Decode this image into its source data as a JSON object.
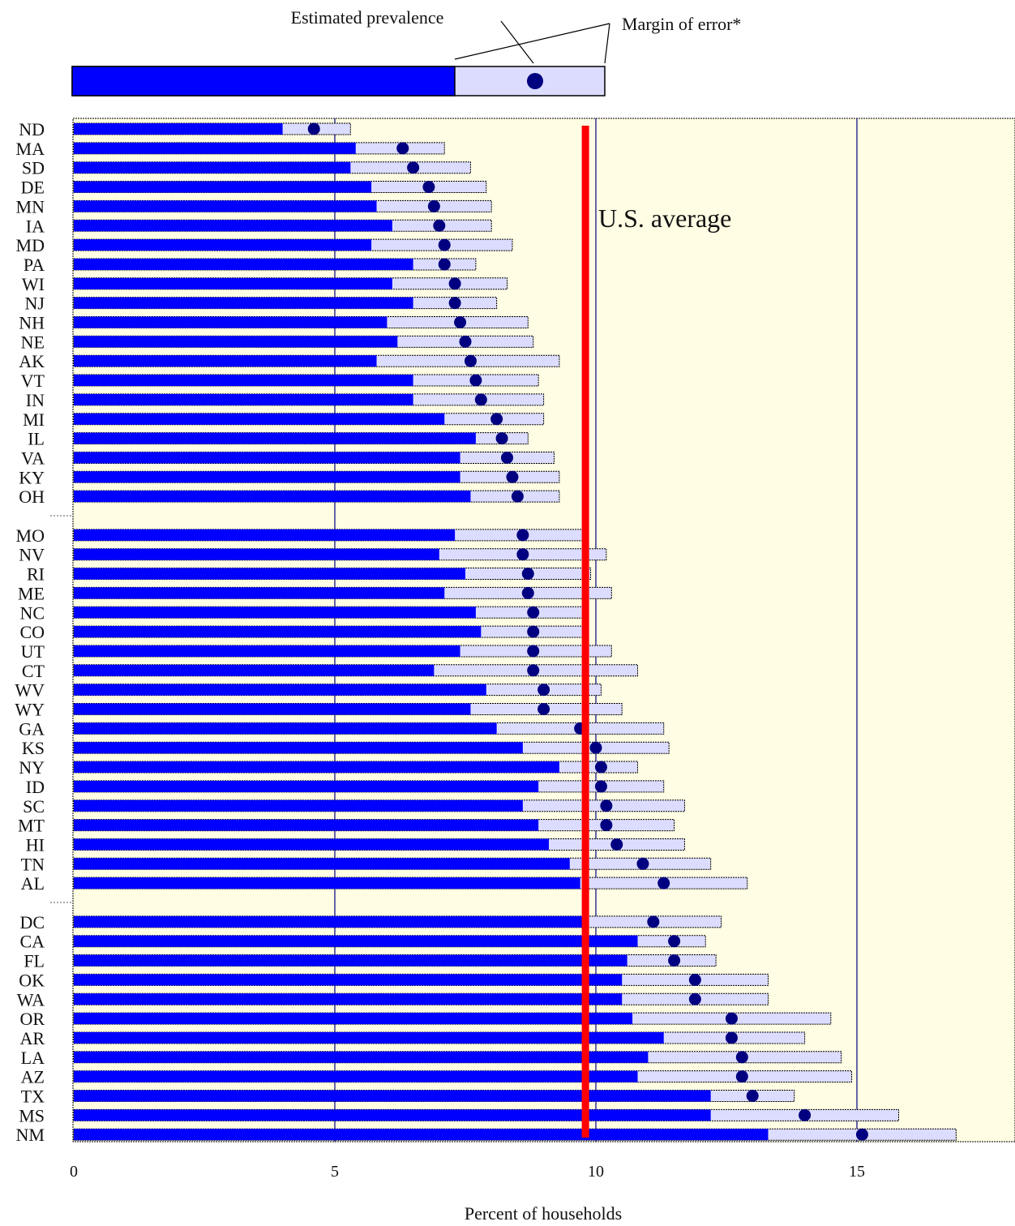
{
  "chart_data": {
    "type": "bar",
    "xlabel": "Percent of households",
    "xlim": [
      0,
      18
    ],
    "x_ticks": [
      0,
      5,
      10,
      15
    ],
    "us_average": 9.8,
    "us_average_label": "U.S. average",
    "legend": {
      "estimate_label": "Estimated prevalence",
      "moe_label": "Margin of error*",
      "example_low": 7.3,
      "example_estimate": 8.8,
      "example_high": 10.2
    },
    "colors": {
      "lower_bar": "#0000ff",
      "moe_bar": "#dcdcff",
      "estimate_dot": "#000080",
      "average_line": "#ff0000",
      "plot_background": "#fffde3",
      "gridline": "#000080"
    },
    "groups": [
      [
        {
          "state": "ND",
          "low": 4.0,
          "est": 4.6,
          "high": 5.3
        },
        {
          "state": "MA",
          "low": 5.4,
          "est": 6.3,
          "high": 7.1
        },
        {
          "state": "SD",
          "low": 5.3,
          "est": 6.5,
          "high": 7.6
        },
        {
          "state": "DE",
          "low": 5.7,
          "est": 6.8,
          "high": 7.9
        },
        {
          "state": "MN",
          "low": 5.8,
          "est": 6.9,
          "high": 8.0
        },
        {
          "state": "IA",
          "low": 6.1,
          "est": 7.0,
          "high": 8.0
        },
        {
          "state": "MD",
          "low": 5.7,
          "est": 7.1,
          "high": 8.4
        },
        {
          "state": "PA",
          "low": 6.5,
          "est": 7.1,
          "high": 7.7
        },
        {
          "state": "WI",
          "low": 6.1,
          "est": 7.3,
          "high": 8.3
        },
        {
          "state": "NJ",
          "low": 6.5,
          "est": 7.3,
          "high": 8.1
        },
        {
          "state": "NH",
          "low": 6.0,
          "est": 7.4,
          "high": 8.7
        },
        {
          "state": "NE",
          "low": 6.2,
          "est": 7.5,
          "high": 8.8
        },
        {
          "state": "AK",
          "low": 5.8,
          "est": 7.6,
          "high": 9.3
        },
        {
          "state": "VT",
          "low": 6.5,
          "est": 7.7,
          "high": 8.9
        },
        {
          "state": "IN",
          "low": 6.5,
          "est": 7.8,
          "high": 9.0
        },
        {
          "state": "MI",
          "low": 7.1,
          "est": 8.1,
          "high": 9.0
        },
        {
          "state": "IL",
          "low": 7.7,
          "est": 8.2,
          "high": 8.7
        },
        {
          "state": "VA",
          "low": 7.4,
          "est": 8.3,
          "high": 9.2
        },
        {
          "state": "KY",
          "low": 7.4,
          "est": 8.4,
          "high": 9.3
        },
        {
          "state": "OH",
          "low": 7.6,
          "est": 8.5,
          "high": 9.3
        }
      ],
      [
        {
          "state": "MO",
          "low": 7.3,
          "est": 8.6,
          "high": 9.8
        },
        {
          "state": "NV",
          "low": 7.0,
          "est": 8.6,
          "high": 10.2
        },
        {
          "state": "RI",
          "low": 7.5,
          "est": 8.7,
          "high": 9.9
        },
        {
          "state": "ME",
          "low": 7.1,
          "est": 8.7,
          "high": 10.3
        },
        {
          "state": "NC",
          "low": 7.7,
          "est": 8.8,
          "high": 9.8
        },
        {
          "state": "CO",
          "low": 7.8,
          "est": 8.8,
          "high": 9.8
        },
        {
          "state": "UT",
          "low": 7.4,
          "est": 8.8,
          "high": 10.3
        },
        {
          "state": "CT",
          "low": 6.9,
          "est": 8.8,
          "high": 10.8
        },
        {
          "state": "WV",
          "low": 7.9,
          "est": 9.0,
          "high": 10.1
        },
        {
          "state": "WY",
          "low": 7.6,
          "est": 9.0,
          "high": 10.5
        },
        {
          "state": "GA",
          "low": 8.1,
          "est": 9.7,
          "high": 11.3
        },
        {
          "state": "KS",
          "low": 8.6,
          "est": 10.0,
          "high": 11.4
        },
        {
          "state": "NY",
          "low": 9.3,
          "est": 10.1,
          "high": 10.8
        },
        {
          "state": "ID",
          "low": 8.9,
          "est": 10.1,
          "high": 11.3
        },
        {
          "state": "SC",
          "low": 8.6,
          "est": 10.2,
          "high": 11.7
        },
        {
          "state": "MT",
          "low": 8.9,
          "est": 10.2,
          "high": 11.5
        },
        {
          "state": "HI",
          "low": 9.1,
          "est": 10.4,
          "high": 11.7
        },
        {
          "state": "TN",
          "low": 9.5,
          "est": 10.9,
          "high": 12.2
        },
        {
          "state": "AL",
          "low": 9.7,
          "est": 11.3,
          "high": 12.9
        }
      ],
      [
        {
          "state": "DC",
          "low": 9.8,
          "est": 11.1,
          "high": 12.4
        },
        {
          "state": "CA",
          "low": 10.8,
          "est": 11.5,
          "high": 12.1
        },
        {
          "state": "FL",
          "low": 10.6,
          "est": 11.5,
          "high": 12.3
        },
        {
          "state": "OK",
          "low": 10.5,
          "est": 11.9,
          "high": 13.3
        },
        {
          "state": "WA",
          "low": 10.5,
          "est": 11.9,
          "high": 13.3
        },
        {
          "state": "OR",
          "low": 10.7,
          "est": 12.6,
          "high": 14.5
        },
        {
          "state": "AR",
          "low": 11.3,
          "est": 12.6,
          "high": 14.0
        },
        {
          "state": "LA",
          "low": 11.0,
          "est": 12.8,
          "high": 14.7
        },
        {
          "state": "AZ",
          "low": 10.8,
          "est": 12.8,
          "high": 14.9
        },
        {
          "state": "TX",
          "low": 12.2,
          "est": 13.0,
          "high": 13.8
        },
        {
          "state": "MS",
          "low": 12.2,
          "est": 14.0,
          "high": 15.8
        },
        {
          "state": "NM",
          "low": 13.3,
          "est": 15.1,
          "high": 16.9
        }
      ]
    ]
  }
}
